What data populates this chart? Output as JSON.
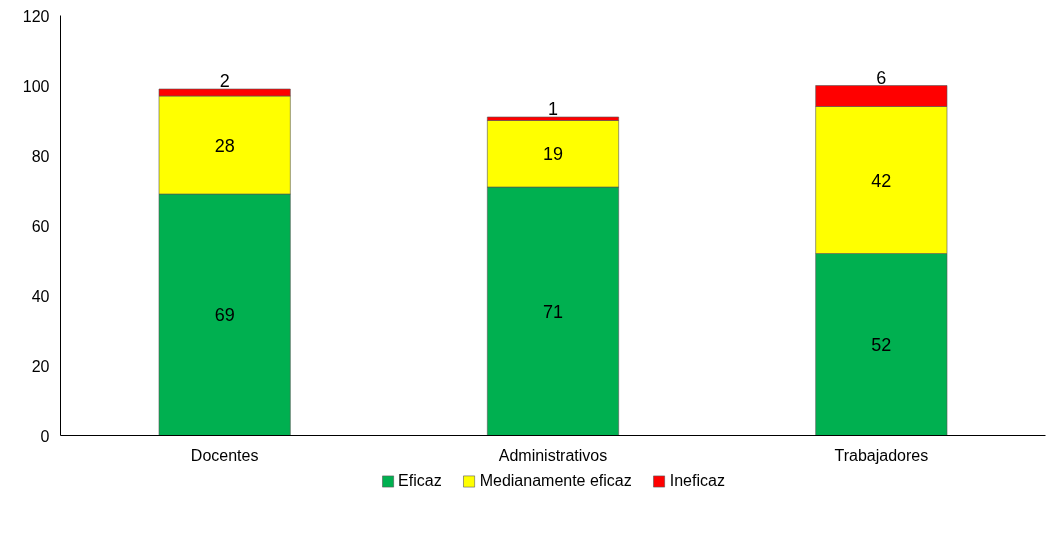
{
  "chart_data": {
    "type": "bar",
    "stacked": true,
    "categories": [
      "Docentes",
      "Administrativos",
      "Trabajadores"
    ],
    "series": [
      {
        "name": "Eficaz",
        "color": "#00b050",
        "values": [
          69,
          71,
          52
        ]
      },
      {
        "name": "Medianamente eficaz",
        "color": "#ffff00",
        "values": [
          28,
          19,
          42
        ]
      },
      {
        "name": "Ineficaz",
        "color": "#ff0000",
        "values": [
          2,
          1,
          6
        ]
      }
    ],
    "ylim": [
      0,
      120
    ],
    "yticks": [
      0,
      20,
      40,
      60,
      80,
      100,
      120
    ],
    "grid": false,
    "legend": "bottom",
    "data_labels": true
  }
}
